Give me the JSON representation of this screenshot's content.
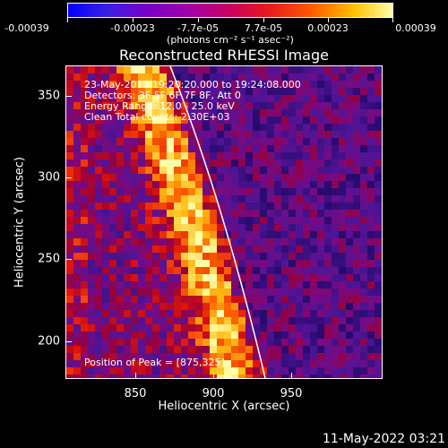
{
  "colorbar": {
    "tick_labels": [
      "-0.00039",
      "-0.00023",
      "-7.7e-05",
      "7.7e-05",
      "0.00023",
      "0.00039"
    ],
    "units": "(photons cm⁻² s⁻¹ asec⁻²)"
  },
  "title": "Reconstructed RHESSI Image",
  "annotations": {
    "time_range": "23-May-2012 19:20:20.000 to 19:24:08.000",
    "detectors": "Detectors: 3F 5F 6F 7F 8F, Att 0",
    "energy_range": "Energy Range: 12.0 - 25.0 keV",
    "algorithm": "Clean    Total counts: 2.30E+03",
    "peak": "Position of Peak = [875,325]"
  },
  "axes": {
    "xlabel": "Heliocentric X (arcsec)",
    "ylabel": "Heliocentric Y (arcsec)",
    "xticks": [
      "850",
      "900",
      "950"
    ],
    "yticks": [
      "200",
      "250",
      "300",
      "350"
    ],
    "xlim": [
      808,
      1002
    ],
    "ylim": [
      174,
      375
    ]
  },
  "timestamp": "11-May-2022 03:21",
  "colors": {
    "background": "#000000",
    "limb": "#ffffff"
  }
}
